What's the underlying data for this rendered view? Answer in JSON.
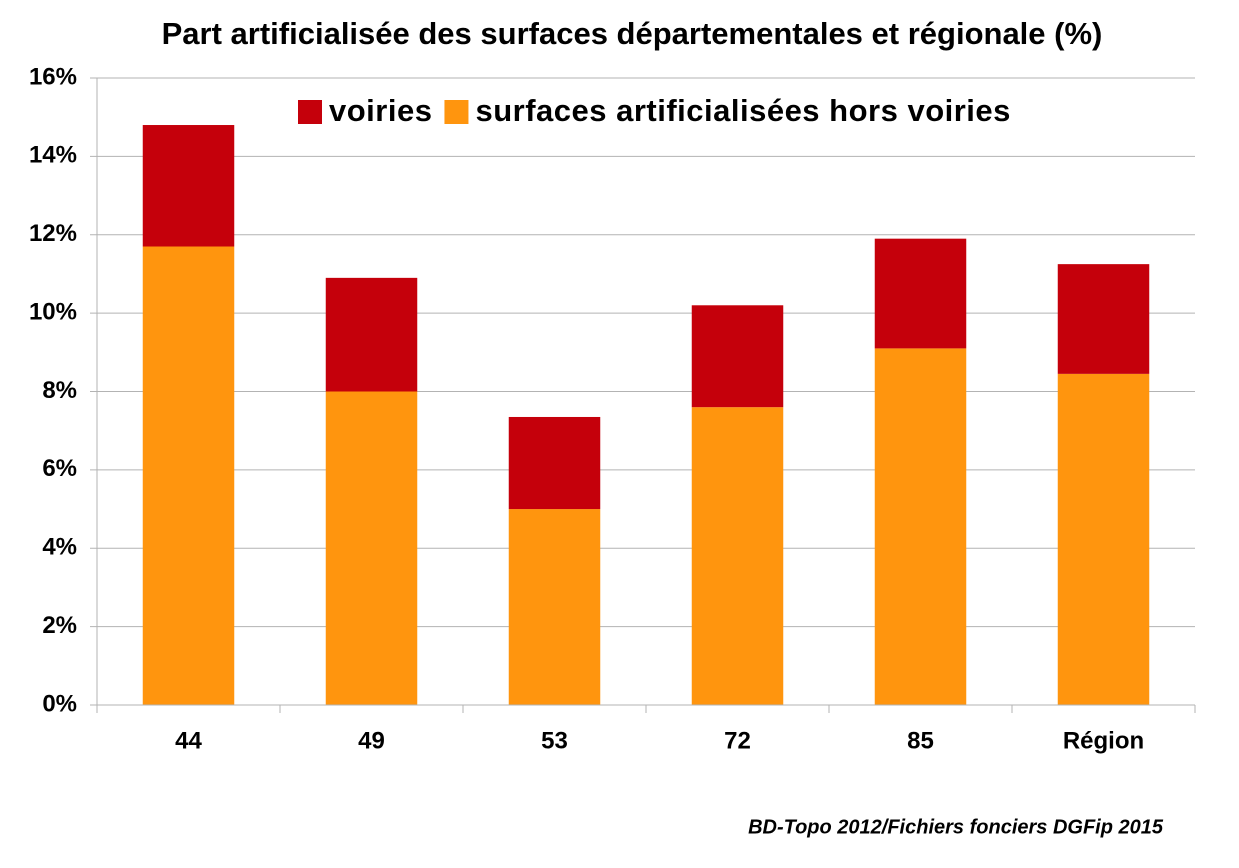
{
  "chart_data": {
    "type": "stacked_bar",
    "title": "Part artificialisée des surfaces départementales et régionale (%)",
    "source": "BD-Topo 2012/Fichiers fonciers DGFip 2015",
    "categories": [
      "44",
      "49",
      "53",
      "72",
      "85",
      "Région"
    ],
    "series": [
      {
        "name": "voiries",
        "color": "#c5000b",
        "values": [
          3.1,
          2.9,
          2.35,
          2.6,
          2.8,
          2.8
        ]
      },
      {
        "name": "surfaces artificialisées hors voiries",
        "color": "#ff950e",
        "values": [
          11.7,
          8.0,
          5.0,
          7.6,
          9.1,
          8.45
        ]
      }
    ],
    "ylim": [
      0,
      16
    ],
    "yticks": [
      {
        "value": 0,
        "label": "0%"
      },
      {
        "value": 2,
        "label": "2%"
      },
      {
        "value": 4,
        "label": "4%"
      },
      {
        "value": 6,
        "label": "6%"
      },
      {
        "value": 8,
        "label": "8%"
      },
      {
        "value": 10,
        "label": "10%"
      },
      {
        "value": 12,
        "label": "12%"
      },
      {
        "value": 14,
        "label": "14%"
      },
      {
        "value": 16,
        "label": "16%"
      }
    ],
    "grid": true,
    "legend": "top"
  }
}
